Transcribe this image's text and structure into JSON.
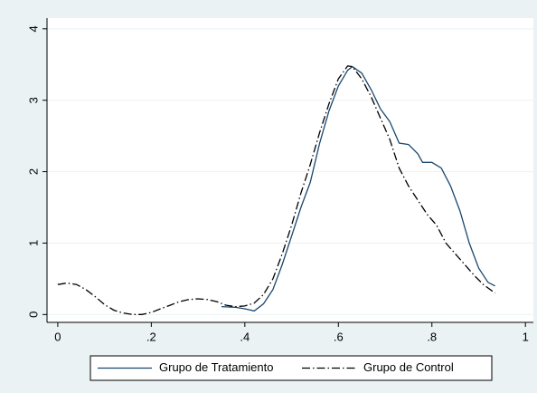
{
  "chart_data": {
    "type": "line",
    "xlim": [
      -0.023,
      1.017
    ],
    "ylim": [
      -0.11,
      4.15
    ],
    "xticks": [
      0,
      {
        "value": 0.2,
        "label": ".2"
      },
      {
        "value": 0.4,
        "label": ".4"
      },
      {
        "value": 0.6,
        "label": ".6"
      },
      {
        "value": 0.8,
        "label": ".8"
      },
      1
    ],
    "yticks": [
      0,
      1,
      2,
      3,
      4
    ],
    "grid": true,
    "legend": "bottom",
    "series": [
      {
        "name": "Grupo de Tratamiento",
        "color": "#1a476f",
        "style": "solid",
        "x": [
          0.35,
          0.38,
          0.4,
          0.42,
          0.44,
          0.46,
          0.48,
          0.5,
          0.52,
          0.54,
          0.56,
          0.58,
          0.6,
          0.62,
          0.63,
          0.65,
          0.67,
          0.69,
          0.71,
          0.73,
          0.75,
          0.77,
          0.78,
          0.8,
          0.82,
          0.84,
          0.86,
          0.88,
          0.9,
          0.92,
          0.935
        ],
        "values": [
          0.11,
          0.1,
          0.08,
          0.05,
          0.15,
          0.35,
          0.7,
          1.1,
          1.5,
          1.85,
          2.4,
          2.85,
          3.2,
          3.42,
          3.47,
          3.38,
          3.15,
          2.88,
          2.7,
          2.4,
          2.38,
          2.25,
          2.13,
          2.13,
          2.05,
          1.8,
          1.45,
          1.0,
          0.65,
          0.45,
          0.4
        ]
      },
      {
        "name": "Grupo de Control",
        "color": "#000000",
        "style": "dashdot",
        "x": [
          0,
          0.02,
          0.04,
          0.06,
          0.08,
          0.1,
          0.12,
          0.14,
          0.16,
          0.18,
          0.2,
          0.22,
          0.24,
          0.26,
          0.28,
          0.3,
          0.32,
          0.34,
          0.36,
          0.38,
          0.4,
          0.42,
          0.44,
          0.46,
          0.48,
          0.5,
          0.52,
          0.54,
          0.56,
          0.58,
          0.6,
          0.62,
          0.63,
          0.65,
          0.67,
          0.69,
          0.71,
          0.73,
          0.75,
          0.77,
          0.79,
          0.81,
          0.83,
          0.85,
          0.87,
          0.89,
          0.91,
          0.935
        ],
        "values": [
          0.42,
          0.44,
          0.42,
          0.35,
          0.25,
          0.14,
          0.06,
          0.02,
          0.0,
          0.0,
          0.03,
          0.08,
          0.13,
          0.18,
          0.21,
          0.22,
          0.21,
          0.18,
          0.13,
          0.11,
          0.12,
          0.16,
          0.28,
          0.5,
          0.85,
          1.25,
          1.7,
          2.1,
          2.55,
          2.95,
          3.3,
          3.48,
          3.47,
          3.3,
          3.05,
          2.75,
          2.45,
          2.05,
          1.8,
          1.6,
          1.4,
          1.25,
          1.0,
          0.85,
          0.7,
          0.55,
          0.42,
          0.3
        ]
      }
    ]
  }
}
